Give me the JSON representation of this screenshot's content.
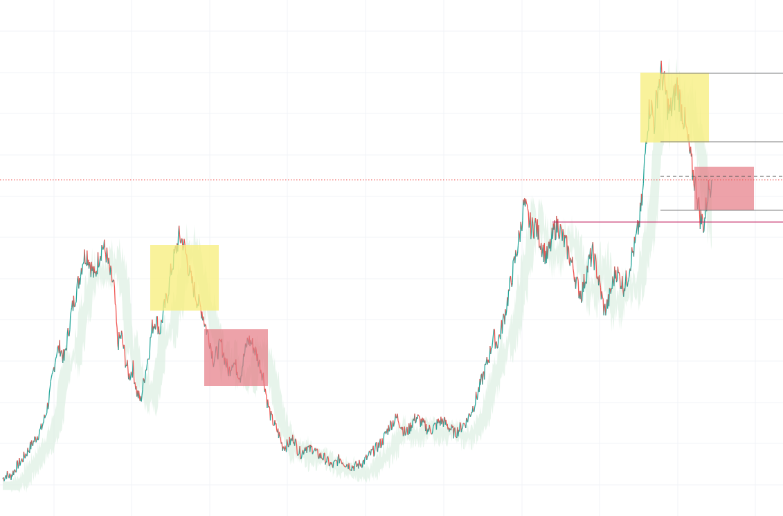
{
  "chart_data": {
    "type": "line",
    "title": "",
    "xlabel": "",
    "ylabel": "",
    "grid": true,
    "colors": {
      "up": "#26a69a",
      "down": "#ef5350",
      "cloud": "#dff0e4",
      "distribution_zone": "#f7ee7f",
      "breakdown_zone": "#e57b85",
      "current_price_line": "#ef5350",
      "level_line": "#7d7d7d",
      "breakout_line": "#c2185b"
    },
    "series": [
      {
        "values": [
          0.01,
          0.02,
          0.015,
          0.03,
          0.045,
          0.055,
          0.07,
          0.085,
          0.1,
          0.115,
          0.13,
          0.16,
          0.2,
          0.26,
          0.32,
          0.33,
          0.3,
          0.36,
          0.42,
          0.46,
          0.5,
          0.55,
          0.56,
          0.53,
          0.5,
          0.55,
          0.58,
          0.56,
          0.51,
          0.48,
          0.34,
          0.36,
          0.3,
          0.26,
          0.28,
          0.22,
          0.2,
          0.26,
          0.31,
          0.38,
          0.4,
          0.37,
          0.42,
          0.46,
          0.52,
          0.56,
          0.6,
          0.59,
          0.55,
          0.5,
          0.47,
          0.44,
          0.42,
          0.38,
          0.35,
          0.3,
          0.32,
          0.34,
          0.3,
          0.27,
          0.3,
          0.28,
          0.26,
          0.31,
          0.35,
          0.34,
          0.32,
          0.29,
          0.26,
          0.2,
          0.16,
          0.14,
          0.12,
          0.09,
          0.09,
          0.1,
          0.11,
          0.08,
          0.07,
          0.09,
          0.08,
          0.085,
          0.07,
          0.065,
          0.06,
          0.05,
          0.04,
          0.05,
          0.06,
          0.05,
          0.045,
          0.04,
          0.04,
          0.045,
          0.05,
          0.06,
          0.07,
          0.08,
          0.09,
          0.1,
          0.12,
          0.14,
          0.15,
          0.16,
          0.14,
          0.12,
          0.13,
          0.15,
          0.16,
          0.15,
          0.14,
          0.13,
          0.13,
          0.14,
          0.15,
          0.15,
          0.14,
          0.13,
          0.12,
          0.13,
          0.14,
          0.15,
          0.17,
          0.19,
          0.22,
          0.25,
          0.28,
          0.31,
          0.36,
          0.34,
          0.37,
          0.41,
          0.46,
          0.51,
          0.56,
          0.61,
          0.68,
          0.65,
          0.62,
          0.63,
          0.6,
          0.57,
          0.55,
          0.58,
          0.62,
          0.63,
          0.6,
          0.58,
          0.55,
          0.52,
          0.48,
          0.46,
          0.5,
          0.54,
          0.56,
          0.52,
          0.47,
          0.42,
          0.44,
          0.48,
          0.52,
          0.5,
          0.48,
          0.5,
          0.55,
          0.58,
          0.63,
          0.7,
          0.86,
          0.93,
          0.88,
          0.97,
          1.0,
          0.95,
          0.9,
          0.93,
          0.97,
          0.92,
          0.88,
          0.82,
          0.76,
          0.72,
          0.65,
          0.63,
          0.71,
          0.74
        ]
      }
    ],
    "ylim": [
      0,
      1.2
    ],
    "annotations": {
      "current_price_level": 0.77,
      "breakout_level": 0.68,
      "levels": [
        1.0,
        0.86,
        0.72
      ],
      "dashed_level": 0.775
    }
  }
}
